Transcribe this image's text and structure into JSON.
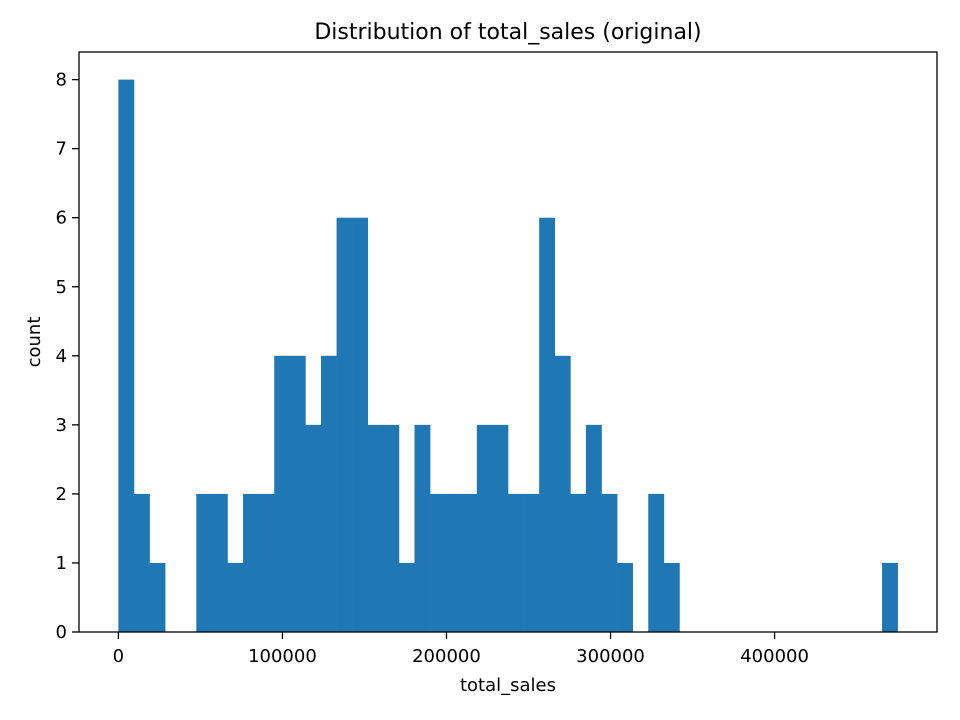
{
  "chart_data": {
    "type": "bar",
    "title": "Distribution of total_sales (original)",
    "xlabel": "total_sales",
    "ylabel": "count",
    "bin_start": 0,
    "bin_width": 9500,
    "counts": [
      8,
      2,
      1,
      0,
      0,
      2,
      2,
      1,
      2,
      2,
      4,
      4,
      3,
      4,
      6,
      6,
      3,
      3,
      1,
      3,
      2,
      2,
      2,
      3,
      3,
      2,
      2,
      6,
      4,
      2,
      3,
      2,
      1,
      0,
      2,
      1,
      0,
      0,
      0,
      0,
      0,
      0,
      0,
      0,
      0,
      0,
      0,
      0,
      0,
      1
    ],
    "xlim": [
      -24000,
      499000
    ],
    "ylim": [
      0,
      8.4
    ],
    "xticks": [
      0,
      100000,
      200000,
      300000,
      400000
    ],
    "xtick_labels": [
      "0",
      "100000",
      "200000",
      "300000",
      "400000"
    ],
    "yticks": [
      0,
      1,
      2,
      3,
      4,
      5,
      6,
      7,
      8
    ],
    "ytick_labels": [
      "0",
      "1",
      "2",
      "3",
      "4",
      "5",
      "6",
      "7",
      "8"
    ],
    "bar_color": "#1f77b4",
    "grid": false,
    "legend": "none"
  }
}
